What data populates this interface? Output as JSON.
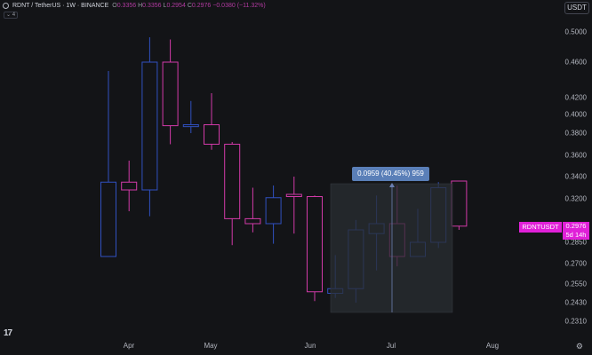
{
  "legend": {
    "title": "RDNT / TetherUS · 1W · BINANCE",
    "open_key": "O",
    "open": "0.3356",
    "high_key": "H",
    "high": "0.3356",
    "low_key": "L",
    "low": "0.2954",
    "close_key": "C",
    "close": "0.2976",
    "change": "−0.0380 (−11.32%)",
    "collapse_label": "⌄ 4"
  },
  "currency": "USDT",
  "price_axis": [
    "0.5000",
    "0.4600",
    "0.4200",
    "0.4000",
    "0.3800",
    "0.3600",
    "0.3400",
    "0.3200",
    "0.2850",
    "0.2700",
    "0.2550",
    "0.2430",
    "0.2310"
  ],
  "time_axis": [
    "Apr",
    "May",
    "Jun",
    "Jul",
    "Aug"
  ],
  "measure": {
    "label": "0.0959 (40.45%) 959"
  },
  "symbol_tag": "RDNTUSDT",
  "price_tag": {
    "price": "0.2976",
    "countdown": "5d 14h"
  },
  "colors": {
    "up": "#3050c0",
    "down": "#d23aa8",
    "background": "#131417",
    "accent": "#e020d8"
  },
  "chart_data": {
    "type": "candlestick",
    "interval": "1W",
    "symbol": "RDNT / TetherUS",
    "exchange": "BINANCE",
    "candles": [
      {
        "o": 0.275,
        "h": 0.45,
        "l": 0.275,
        "c": 0.335
      },
      {
        "o": 0.335,
        "h": 0.355,
        "l": 0.31,
        "c": 0.328
      },
      {
        "o": 0.328,
        "h": 0.493,
        "l": 0.306,
        "c": 0.46
      },
      {
        "o": 0.46,
        "h": 0.49,
        "l": 0.37,
        "c": 0.388
      },
      {
        "o": 0.387,
        "h": 0.416,
        "l": 0.38,
        "c": 0.389
      },
      {
        "o": 0.389,
        "h": 0.425,
        "l": 0.365,
        "c": 0.37
      },
      {
        "o": 0.37,
        "h": 0.372,
        "l": 0.283,
        "c": 0.304
      },
      {
        "o": 0.304,
        "h": 0.33,
        "l": 0.293,
        "c": 0.3
      },
      {
        "o": 0.3,
        "h": 0.332,
        "l": 0.284,
        "c": 0.321
      },
      {
        "o": 0.324,
        "h": 0.34,
        "l": 0.292,
        "c": 0.322
      },
      {
        "o": 0.322,
        "h": 0.323,
        "l": 0.244,
        "c": 0.25
      },
      {
        "o": 0.249,
        "h": 0.276,
        "l": 0.246,
        "c": 0.252
      },
      {
        "o": 0.252,
        "h": 0.303,
        "l": 0.243,
        "c": 0.295
      },
      {
        "o": 0.292,
        "h": 0.323,
        "l": 0.265,
        "c": 0.3
      },
      {
        "o": 0.3,
        "h": 0.332,
        "l": 0.268,
        "c": 0.275
      },
      {
        "o": 0.275,
        "h": 0.312,
        "l": 0.275,
        "c": 0.285
      },
      {
        "o": 0.285,
        "h": 0.335,
        "l": 0.281,
        "c": 0.33
      },
      {
        "o": 0.336,
        "h": 0.336,
        "l": 0.295,
        "c": 0.298
      }
    ]
  }
}
